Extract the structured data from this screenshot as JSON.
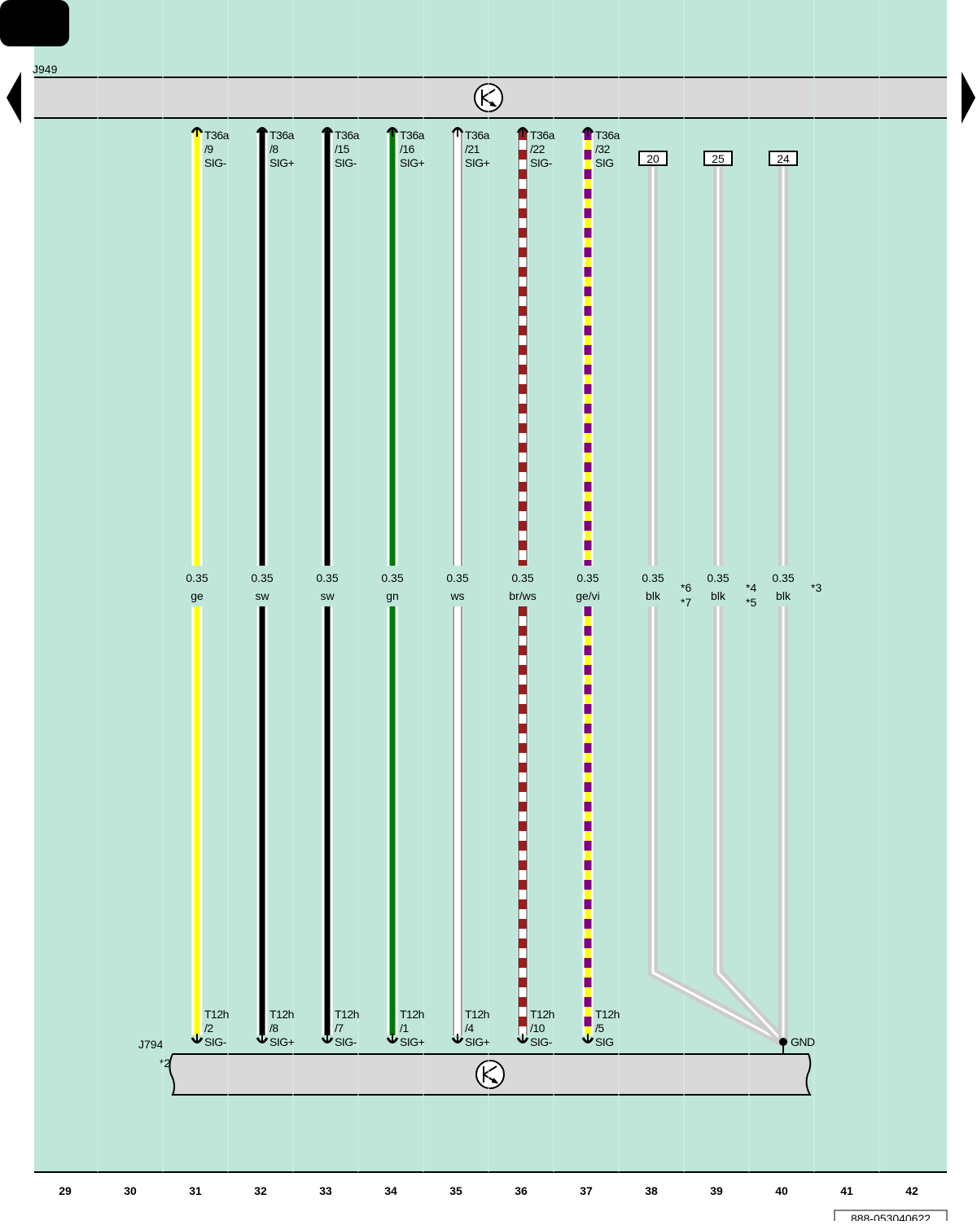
{
  "top_module": {
    "label": "J949"
  },
  "bottom_module": {
    "label": "J794",
    "note": "*2"
  },
  "wires": [
    {
      "top": [
        "T36a",
        "/9",
        "SIG-"
      ],
      "size": "0.35",
      "color_code": "ge",
      "bottom": [
        "T12h",
        "/2",
        "SIG-"
      ],
      "color": "#ffff00"
    },
    {
      "top": [
        "T36a",
        "/8",
        "SIG+"
      ],
      "size": "0.35",
      "color_code": "sw",
      "bottom": [
        "T12h",
        "/8",
        "SIG+"
      ],
      "color": "#000000"
    },
    {
      "top": [
        "T36a",
        "/15",
        "SIG-"
      ],
      "size": "0.35",
      "color_code": "sw",
      "bottom": [
        "T12h",
        "/7",
        "SIG-"
      ],
      "color": "#000000"
    },
    {
      "top": [
        "T36a",
        "/16",
        "SIG+"
      ],
      "size": "0.35",
      "color_code": "gn",
      "bottom": [
        "T12h",
        "/1",
        "SIG+"
      ],
      "color": "#007a00"
    },
    {
      "top": [
        "T36a",
        "/21",
        "SIG+"
      ],
      "size": "0.35",
      "color_code": "ws",
      "bottom": [
        "T12h",
        "/4",
        "SIG+"
      ],
      "color": "#ffffff"
    },
    {
      "top": [
        "T36a",
        "/22",
        "SIG-"
      ],
      "size": "0.35",
      "color_code": "br/ws",
      "bottom": [
        "T12h",
        "/10",
        "SIG-"
      ],
      "color": "#ffffff",
      "stripe": "#a01c1c"
    },
    {
      "top": [
        "T36a",
        "/32",
        "SIG"
      ],
      "size": "0.35",
      "color_code": "ge/vi",
      "bottom": [
        "T12h",
        "/5",
        "SIG"
      ],
      "color": "#ffff00",
      "stripe": "#800080"
    }
  ],
  "ground_wires": [
    {
      "terminal": "20",
      "size": "0.35",
      "color_code": "blk",
      "notes": [
        "*6",
        "*7"
      ]
    },
    {
      "terminal": "25",
      "size": "0.35",
      "color_code": "blk",
      "notes": [
        "*4",
        "*5"
      ]
    },
    {
      "terminal": "24",
      "size": "0.35",
      "color_code": "blk",
      "notes": [
        "*3"
      ]
    }
  ],
  "ground_label": "GND",
  "columns": [
    29,
    30,
    31,
    32,
    33,
    34,
    35,
    36,
    37,
    38,
    39,
    40,
    41,
    42
  ],
  "document_id": "888-053040622"
}
